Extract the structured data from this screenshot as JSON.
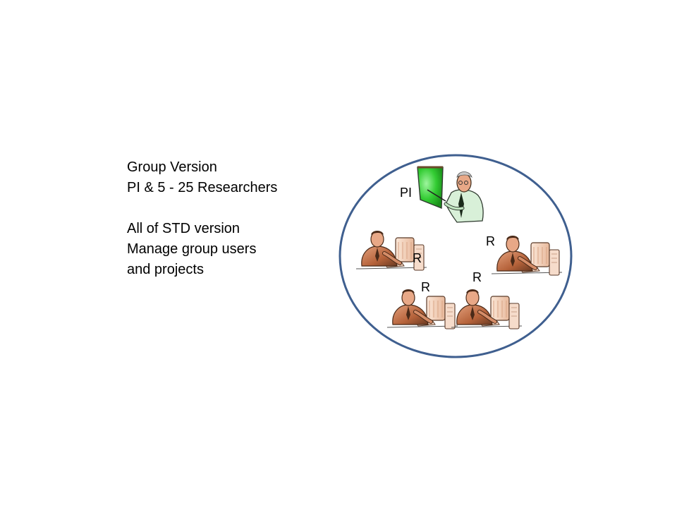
{
  "description_lines": [
    "Group Version",
    "PI & 5 - 25 Researchers",
    "",
    "All of STD version",
    "Manage group users",
    "and projects"
  ],
  "diagram": {
    "pi_label": "PI",
    "researcher_labels": [
      "R",
      "R",
      "R",
      "R"
    ],
    "colors": {
      "circle_stroke": "#3f5f8f",
      "presenter_board": "#33cc33",
      "skin": "#e8a887",
      "shirt_dark": "#6a3a22",
      "monitor": "#f3d3be"
    },
    "icons": [
      "presenter-icon",
      "researcher-at-computer-icon"
    ]
  }
}
